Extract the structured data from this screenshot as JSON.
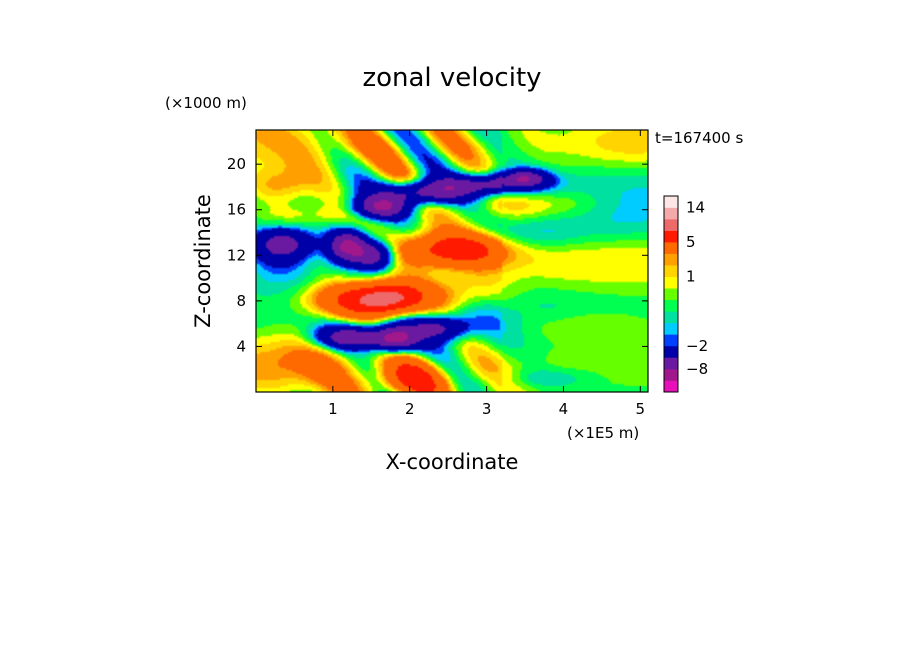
{
  "chart_data": {
    "type": "heatmap",
    "title": "zonal velocity",
    "xlabel": "X-coordinate",
    "ylabel": "Z-coordinate",
    "x_unit_label": "(×1E5 m)",
    "y_unit_label": "(×1000 m)",
    "time_label": "t=167400 s",
    "xlim": [
      0,
      5.1
    ],
    "ylim": [
      0,
      23
    ],
    "x_ticks": [
      1,
      2,
      3,
      4,
      5
    ],
    "x_tick_labels": [
      "1",
      "2",
      "3",
      "4",
      "5"
    ],
    "y_ticks": [
      4,
      8,
      12,
      16,
      20
    ],
    "y_tick_labels": [
      "4",
      "8",
      "12",
      "16",
      "20"
    ],
    "colorbar": {
      "levels": [
        -14,
        -11,
        -8,
        -5,
        -2,
        -1.5,
        -1,
        -0.5,
        0,
        0.5,
        1,
        1.5,
        2,
        5,
        8,
        11,
        14,
        17
      ],
      "colors": [
        "#e810b8",
        "#a0188c",
        "#6a1aa0",
        "#0000a8",
        "#0040ff",
        "#00ccff",
        "#00e0a0",
        "#00ff50",
        "#66ff00",
        "#ffff00",
        "#ffd400",
        "#ffa000",
        "#ff6a00",
        "#ff1a00",
        "#ee6a6a",
        "#f4aaaa",
        "#fde6e6"
      ],
      "tick_values": [
        14,
        5,
        1,
        -2,
        -8
      ],
      "tick_labels": [
        "14",
        "5",
        "1",
        "−2",
        "−8"
      ]
    },
    "field_features": [
      {
        "x": 0.3,
        "z": 18.0,
        "sx": 0.35,
        "sz": 1.2,
        "v": 2.5
      },
      {
        "x": 0.35,
        "z": 13.0,
        "sx": 0.25,
        "sz": 0.9,
        "v": -6
      },
      {
        "x": 0.7,
        "z": 15.5,
        "sx": 0.6,
        "sz": 0.8,
        "v": 1.5
      },
      {
        "x": 1.2,
        "z": 12.8,
        "sx": 0.18,
        "sz": 1.0,
        "v": -9
      },
      {
        "x": 1.55,
        "z": 12.0,
        "sx": 0.18,
        "sz": 0.9,
        "v": -7
      },
      {
        "x": 1.3,
        "z": 8.0,
        "sx": 0.45,
        "sz": 1.1,
        "v": 6
      },
      {
        "x": 1.75,
        "z": 8.2,
        "sx": 0.3,
        "sz": 1.0,
        "v": 7
      },
      {
        "x": 1.25,
        "z": 4.8,
        "sx": 0.3,
        "sz": 0.7,
        "v": -7
      },
      {
        "x": 1.8,
        "z": 4.6,
        "sx": 0.2,
        "sz": 0.8,
        "v": -9
      },
      {
        "x": 2.4,
        "z": 5.6,
        "sx": 0.25,
        "sz": 0.7,
        "v": -5
      },
      {
        "x": 2.6,
        "z": 12.5,
        "sx": 0.5,
        "sz": 1.0,
        "v": 6
      },
      {
        "x": 2.2,
        "z": 17.5,
        "sx": 0.35,
        "sz": 0.7,
        "v": -7
      },
      {
        "x": 3.1,
        "z": 18.2,
        "sx": 0.45,
        "sz": 0.6,
        "v": -6
      },
      {
        "x": 3.5,
        "z": 18.8,
        "sx": 0.2,
        "sz": 0.5,
        "v": -8
      },
      {
        "x": 1.6,
        "z": 16.2,
        "sx": 0.25,
        "sz": 0.7,
        "v": -7
      },
      {
        "x": 3.6,
        "z": 13.8,
        "sx": 0.45,
        "sz": 1.2,
        "v": -2.5
      },
      {
        "x": 4.7,
        "z": 14.5,
        "sx": 0.5,
        "sz": 1.5,
        "v": -1.2
      },
      {
        "x": 0.3,
        "z": 11.5,
        "sx": 0.35,
        "sz": 1.5,
        "v": -2
      },
      {
        "x": 3.6,
        "z": 16.5,
        "sx": 0.6,
        "sz": 1.0,
        "v": 2
      },
      {
        "x": 4.3,
        "z": 5.8,
        "sx": 0.6,
        "sz": 1.0,
        "v": 1.5
      },
      {
        "x": 3.8,
        "z": 1.2,
        "sx": 0.4,
        "sz": 0.6,
        "v": -1.5
      },
      {
        "x": 2.0,
        "z": 1.0,
        "sx": 0.3,
        "sz": 1.0,
        "v": 4
      },
      {
        "x": 4.8,
        "z": 21.5,
        "sx": 0.6,
        "sz": 1.5,
        "v": 1.2
      },
      {
        "x": 2.5,
        "z": 8.5,
        "sx": 0.5,
        "sz": 1.2,
        "v": 2.5
      },
      {
        "x": 0.5,
        "z": 2.5,
        "sx": 0.5,
        "sz": 1.5,
        "v": 1
      }
    ]
  }
}
